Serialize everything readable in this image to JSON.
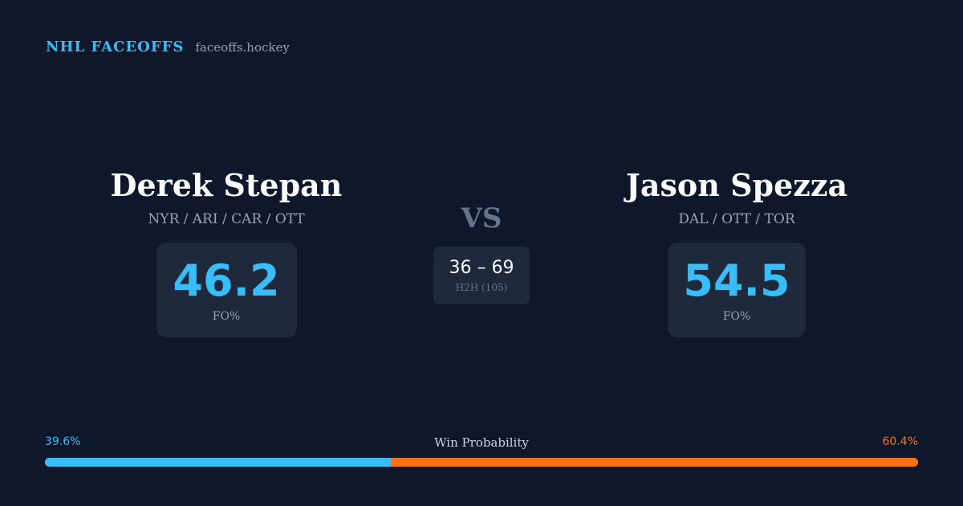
{
  "brand": {
    "name": "NHL FACEOFFS",
    "url": "faceoffs.hockey"
  },
  "players": {
    "left": {
      "name": "Derek Stepan",
      "teams": "NYR / ARI / CAR / OTT",
      "fo_pct": "46.2",
      "fo_label": "FO%"
    },
    "right": {
      "name": "Jason Spezza",
      "teams": "DAL / OTT / TOR",
      "fo_pct": "54.5",
      "fo_label": "FO%"
    }
  },
  "versus": "VS",
  "h2h": {
    "score": "36 – 69",
    "label": "H2H (105)"
  },
  "win_probability": {
    "title": "Win Probability",
    "left_label": "39.6%",
    "right_label": "60.4%",
    "left_value": 39.6,
    "right_value": 60.4
  },
  "colors": {
    "background": "#0f172a",
    "card": "#1e293b",
    "accent_blue": "#38bdf8",
    "accent_orange": "#f97316"
  }
}
